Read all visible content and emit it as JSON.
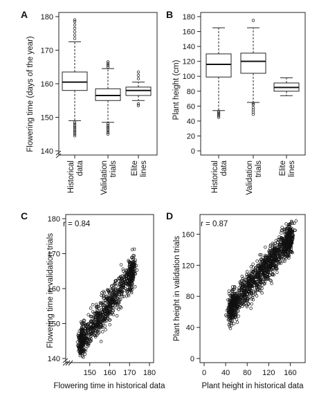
{
  "chart_data": [
    {
      "panel": "A",
      "type": "box",
      "ylabel": "Flowering time  (days of the year)",
      "xlabel": "",
      "ylim": [
        140,
        180
      ],
      "yticks": [
        140,
        150,
        160,
        170,
        180
      ],
      "axis_break": true,
      "categories": [
        "Historical data",
        "Validation trials",
        "Elite lines"
      ],
      "boxes": [
        {
          "q1": 158,
          "median": 160.5,
          "q3": 163.5,
          "whisker_low": 149,
          "whisker_high": 172.5,
          "outliers": [
            148.5,
            148,
            147.5,
            147,
            146.5,
            146,
            145.5,
            145,
            144.5,
            173.5,
            174.5,
            175.5,
            176.5,
            177.5,
            178.5,
            179
          ]
        },
        {
          "q1": 155,
          "median": 156.5,
          "q3": 158.5,
          "whisker_low": 148.5,
          "whisker_high": 164.5,
          "outliers": [
            148,
            147.5,
            147,
            146.5,
            146,
            145.5,
            145,
            165,
            165.5,
            166,
            166.5
          ]
        },
        {
          "q1": 156.5,
          "median": 158,
          "q3": 159,
          "whisker_low": 155,
          "whisker_high": 160.5,
          "outliers": [
            154,
            153.5,
            161.5,
            162.5,
            163.5
          ]
        }
      ]
    },
    {
      "panel": "B",
      "type": "box",
      "ylabel": "Plant height (cm)",
      "xlabel": "",
      "ylim": [
        0,
        180
      ],
      "yticks": [
        0,
        20,
        40,
        60,
        80,
        100,
        120,
        140,
        160,
        180
      ],
      "axis_break": false,
      "categories": [
        "Historical data",
        "Validation trials",
        "Elite lines"
      ],
      "boxes": [
        {
          "q1": 99,
          "median": 116,
          "q3": 130,
          "whisker_low": 54,
          "whisker_high": 165,
          "outliers": [
            53,
            51,
            49,
            47,
            45
          ]
        },
        {
          "q1": 104,
          "median": 120,
          "q3": 131,
          "whisker_low": 65,
          "whisker_high": 165,
          "outliers": [
            64,
            62,
            58,
            55,
            52,
            49,
            175
          ]
        },
        {
          "q1": 80,
          "median": 85,
          "q3": 91,
          "whisker_low": 74,
          "whisker_high": 98,
          "outliers": []
        }
      ]
    },
    {
      "panel": "C",
      "type": "scatter",
      "xlabel": "Flowering time in historical data",
      "ylabel": "Flowering time in validation trials",
      "xlim": [
        140,
        180
      ],
      "ylim": [
        140,
        180
      ],
      "xticks": [
        150,
        160,
        170,
        180
      ],
      "yticks": [
        140,
        150,
        160,
        170,
        180
      ],
      "axis_break": true,
      "r_label": "r = ",
      "r_value": "0.84",
      "cloud": {
        "x_min": 146,
        "x_max": 171,
        "slope": 0.78,
        "intercept": 31,
        "spread": 2.3,
        "count": 950
      }
    },
    {
      "panel": "D",
      "type": "scatter",
      "xlabel": "Plant height in historical data",
      "ylabel": "Plant height in validation trials",
      "xlim": [
        0,
        180
      ],
      "ylim": [
        0,
        180
      ],
      "xticks": [
        0,
        40,
        80,
        120,
        160
      ],
      "yticks": [
        0,
        40,
        80,
        120,
        160
      ],
      "axis_break": false,
      "r_label": "r = ",
      "r_value": "0.87",
      "cloud": {
        "x_min": 52,
        "x_max": 158,
        "slope": 0.82,
        "intercept": 24,
        "spread": 9.5,
        "count": 1400
      }
    }
  ]
}
